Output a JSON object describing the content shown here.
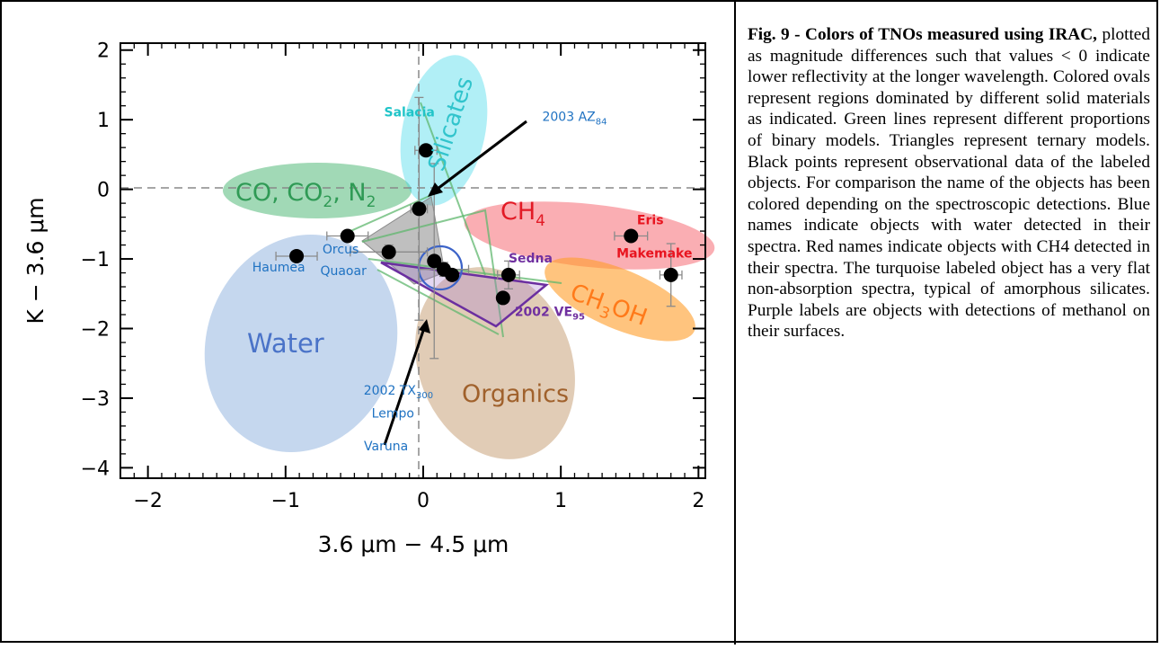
{
  "caption": {
    "title": "Fig. 9 - Colors of TNOs measured using IRAC,",
    "body": " plotted as magnitude differences such that values < 0 indicate lower reflectivity at the longer wavelength. Colored ovals represent regions dominated by different solid materials as indicated. Green lines represent different proportions of binary models. Triangles represent ternary models. Black points represent observational data of the labeled objects. For comparison the name of the objects has been colored depending on the spectroscopic detections. Blue names indicate objects with water detected in their spectra. Red names indicate objects with CH4 detected in their spectra. The turquoise labeled object has a very flat non-absorption spectra, typical of amorphous silicates. Purple labels are objects with detections of methanol on their surfaces."
  },
  "chart_data": {
    "type": "scatter",
    "xlabel": "3.6 μm − 4.5 μm",
    "ylabel": "K − 3.6 μm",
    "xlim": [
      -2.2,
      2.05
    ],
    "ylim": [
      -4.15,
      2.1
    ],
    "xticks": [
      -2,
      -1,
      0,
      1,
      2
    ],
    "yticks": [
      -4,
      -3,
      -2,
      -1,
      0,
      1,
      2
    ],
    "xtick_labels": [
      "−2",
      "−1",
      "0",
      "1",
      "2"
    ],
    "ytick_labels": [
      "−4",
      "−3",
      "−2",
      "−1",
      "0",
      "1",
      "2"
    ],
    "reference_lines": {
      "x": 0,
      "y": 0,
      "style": "dashed"
    },
    "points": [
      {
        "x": 0.02,
        "y": 0.56,
        "xerr": 0.08,
        "yerr": 0.0
      },
      {
        "x": -0.03,
        "y": -0.28,
        "xerr": 0.06,
        "yerr": 1.6
      },
      {
        "x": -0.55,
        "y": -0.67,
        "xerr": 0.15,
        "yerr": 0.0
      },
      {
        "x": -0.25,
        "y": -0.9,
        "xerr": 0.28,
        "yerr": 0.1
      },
      {
        "x": -0.92,
        "y": -0.96,
        "xerr": 0.15,
        "yerr": 0.0
      },
      {
        "x": 0.08,
        "y": -1.03,
        "xerr": 0.0,
        "yerr": 1.4
      },
      {
        "x": 0.15,
        "y": -1.15,
        "xerr": 0.18,
        "yerr": 0.1
      },
      {
        "x": 0.21,
        "y": -1.23,
        "xerr": 0.0,
        "yerr": 0.0
      },
      {
        "x": 0.62,
        "y": -1.23,
        "xerr": 0.08,
        "yerr": 0.2
      },
      {
        "x": 0.58,
        "y": -1.56,
        "xerr": 0.0,
        "yerr": 0.0
      },
      {
        "x": 1.51,
        "y": -0.67,
        "xerr": 0.12,
        "yerr": 0.0
      },
      {
        "x": 1.8,
        "y": -1.23,
        "xerr": 0.08,
        "yerr": 0.45
      }
    ],
    "object_labels": [
      {
        "text": "Salacia",
        "group": "silicates",
        "x": -0.1,
        "y": 1.05
      },
      {
        "text": "Orcus",
        "group": "water",
        "x": -0.6,
        "y": -0.92
      },
      {
        "text": "Haumea",
        "group": "water",
        "x": -1.05,
        "y": -1.18
      },
      {
        "text": "Quaoar",
        "group": "water",
        "x": -0.58,
        "y": -1.23
      },
      {
        "text": "Eris",
        "group": "ch4",
        "x": 1.65,
        "y": -0.5
      },
      {
        "text": "Makemake",
        "group": "ch4",
        "x": 1.68,
        "y": -0.98
      },
      {
        "text": "Sedna",
        "group": "methanol",
        "x": 0.78,
        "y": -1.05
      },
      {
        "text": "2002 TX",
        "sub": "300",
        "group": "water",
        "x": -0.18,
        "y": -2.95
      },
      {
        "text": "Lempo",
        "group": "water",
        "x": -0.22,
        "y": -3.28
      },
      {
        "text": "Varuna",
        "group": "water",
        "x": -0.27,
        "y": -3.75
      },
      {
        "text": "2003 AZ",
        "sub": "84",
        "group": "water",
        "x": 1.1,
        "y": 0.98
      },
      {
        "text": "2002 VE",
        "sub": "95",
        "group": "methanol",
        "x": 0.92,
        "y": -1.82
      }
    ],
    "regions": [
      {
        "label": "CO, CO",
        "sub": "2",
        "label2": ", N",
        "sub2": "2",
        "color": "#2faa5e"
      },
      {
        "label": "Silicates",
        "color": "#3dd8e8"
      },
      {
        "label": "CH",
        "sub": "4",
        "color": "#f44b57"
      },
      {
        "label": "CH",
        "sub": "3",
        "label2": "OH",
        "color": "#ff9c28"
      },
      {
        "label": "Water",
        "color": "#6f9bd4"
      },
      {
        "label": "Organics",
        "color": "#b07a3e"
      }
    ],
    "label_colors": {
      "water": "#1f72c2",
      "ch4": "#e8141f",
      "silicates": "#20c4c8",
      "methanol": "#7030a0"
    }
  }
}
